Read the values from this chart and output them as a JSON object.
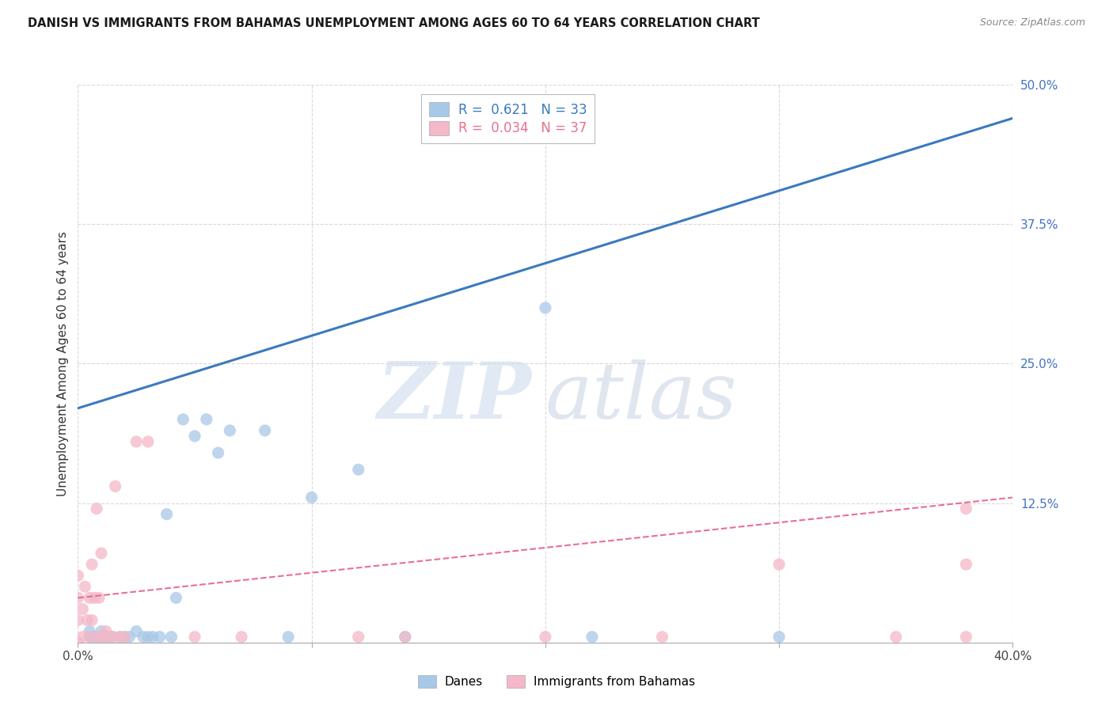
{
  "title": "DANISH VS IMMIGRANTS FROM BAHAMAS UNEMPLOYMENT AMONG AGES 60 TO 64 YEARS CORRELATION CHART",
  "source": "Source: ZipAtlas.com",
  "ylabel": "Unemployment Among Ages 60 to 64 years",
  "xlim": [
    0.0,
    0.4
  ],
  "ylim": [
    0.0,
    0.5
  ],
  "xticks": [
    0.0,
    0.1,
    0.2,
    0.3,
    0.4
  ],
  "yticks": [
    0.0,
    0.125,
    0.25,
    0.375,
    0.5
  ],
  "xticklabels": [
    "0.0%",
    "",
    "",
    "",
    "40.0%"
  ],
  "yticklabels_right": [
    "",
    "12.5%",
    "25.0%",
    "37.5%",
    "50.0%"
  ],
  "watermark_zip": "ZIP",
  "watermark_atlas": "atlas",
  "legend_R_danes": "0.621",
  "legend_N_danes": "33",
  "legend_R_immigrants": "0.034",
  "legend_N_immigrants": "37",
  "danes_color": "#a8c8e8",
  "immigrants_color": "#f4b8c8",
  "danes_line_color": "#3a7abf",
  "immigrants_line_color": "#e87090",
  "danes_x": [
    0.005,
    0.005,
    0.007,
    0.008,
    0.01,
    0.01,
    0.012,
    0.013,
    0.015,
    0.018,
    0.02,
    0.022,
    0.025,
    0.028,
    0.03,
    0.032,
    0.035,
    0.038,
    0.04,
    0.042,
    0.045,
    0.05,
    0.055,
    0.06,
    0.065,
    0.08,
    0.09,
    0.1,
    0.12,
    0.14,
    0.2,
    0.22,
    0.3
  ],
  "danes_y": [
    0.005,
    0.01,
    0.005,
    0.005,
    0.005,
    0.01,
    0.005,
    0.005,
    0.005,
    0.005,
    0.005,
    0.005,
    0.01,
    0.005,
    0.005,
    0.005,
    0.005,
    0.115,
    0.005,
    0.04,
    0.2,
    0.185,
    0.2,
    0.17,
    0.19,
    0.19,
    0.005,
    0.13,
    0.155,
    0.005,
    0.3,
    0.005,
    0.005
  ],
  "immigrants_x": [
    0.0,
    0.0,
    0.0,
    0.0,
    0.002,
    0.002,
    0.003,
    0.004,
    0.005,
    0.005,
    0.006,
    0.006,
    0.007,
    0.008,
    0.008,
    0.009,
    0.01,
    0.01,
    0.012,
    0.013,
    0.015,
    0.016,
    0.018,
    0.02,
    0.025,
    0.03,
    0.05,
    0.07,
    0.12,
    0.14,
    0.2,
    0.25,
    0.3,
    0.35,
    0.38,
    0.38,
    0.38
  ],
  "immigrants_y": [
    0.0,
    0.02,
    0.04,
    0.06,
    0.005,
    0.03,
    0.05,
    0.02,
    0.005,
    0.04,
    0.02,
    0.07,
    0.04,
    0.005,
    0.12,
    0.04,
    0.005,
    0.08,
    0.01,
    0.005,
    0.005,
    0.14,
    0.005,
    0.005,
    0.18,
    0.18,
    0.005,
    0.005,
    0.005,
    0.005,
    0.005,
    0.005,
    0.07,
    0.005,
    0.005,
    0.07,
    0.12
  ],
  "danes_line_x0": 0.0,
  "danes_line_y0": 0.21,
  "danes_line_x1": 0.4,
  "danes_line_y1": 0.47,
  "immigrants_line_x0": 0.0,
  "immigrants_line_y0": 0.04,
  "immigrants_line_x1": 0.4,
  "immigrants_line_y1": 0.13,
  "background_color": "#ffffff",
  "grid_color": "#d0d0d0"
}
